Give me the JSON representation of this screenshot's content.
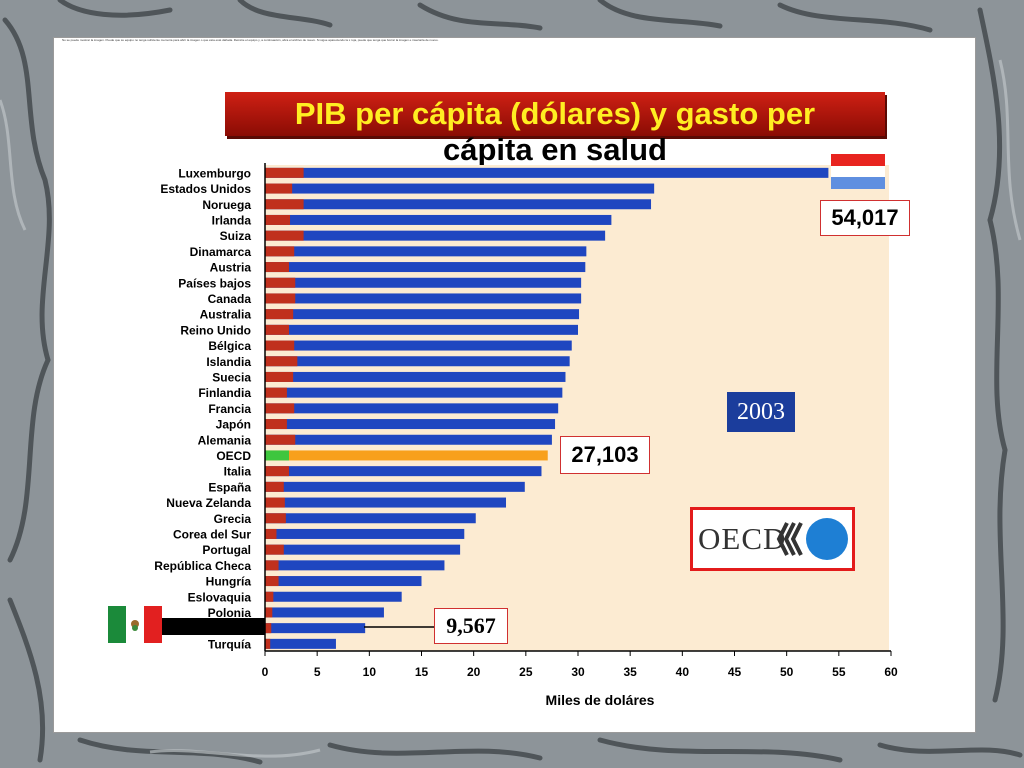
{
  "slide": {
    "note": "No se puede mostrar la imagen. Puede que su equipo no tenga suficiente memoria para abrir la imagen o que ésta esté dañada. Reinicie el equipo y, a continuación, abra el archivo de nuevo. Si sigue apareciendo la x roja, puede que tenga que borrar la imagen e insertarla de nuevo."
  },
  "chart_data": {
    "type": "bar",
    "orientation": "horizontal",
    "stacked": true,
    "title_line1": "PIB per cápita (dólares) y gasto per",
    "title_line2": "cápita en salud",
    "xlabel": "Miles de doláres",
    "ylabel": "",
    "xlim": [
      0,
      60
    ],
    "x_ticks": [
      "0",
      "5",
      "10",
      "15",
      "20",
      "25",
      "30",
      "35",
      "40",
      "45",
      "50",
      "55",
      "60"
    ],
    "categories": [
      "Luxemburgo",
      "Estados Unidos",
      "Noruega",
      "Irlanda",
      "Suiza",
      "Dinamarca",
      "Austria",
      "Países bajos",
      "Canada",
      "Australia",
      "Reino Unido",
      "Bélgica",
      "Islandia",
      "Suecia",
      "Finlandia",
      "Francia",
      "Japón",
      "Alemania",
      "OECD",
      "Italia",
      "España",
      "Nueva Zelanda",
      "Grecia",
      "Corea del Sur",
      "Portugal",
      "República Checa",
      "Hungría",
      "Eslovaquia",
      "Polonia",
      "México",
      "Turquía"
    ],
    "series": [
      {
        "values": [
          3.7,
          2.6,
          3.7,
          2.4,
          3.7,
          2.8,
          2.3,
          2.9,
          2.9,
          2.7,
          2.3,
          2.8,
          3.1,
          2.7,
          2.1,
          2.8,
          2.1,
          2.9,
          2.3,
          2.3,
          1.8,
          1.9,
          2.0,
          1.1,
          1.8,
          1.3,
          1.3,
          0.8,
          0.7,
          0.6,
          0.5
        ]
      },
      {
        "values": [
          54.0,
          37.3,
          37.0,
          33.2,
          32.6,
          30.8,
          30.7,
          30.3,
          30.3,
          30.1,
          30.0,
          29.4,
          29.2,
          28.8,
          28.5,
          28.1,
          27.8,
          27.5,
          27.1,
          26.5,
          24.9,
          23.1,
          20.2,
          19.1,
          18.7,
          17.2,
          15.0,
          13.1,
          11.4,
          9.6,
          6.8
        ]
      }
    ],
    "highlight_category": "OECD",
    "highlight_colors": {
      "gdp": "#f8a01c",
      "health": "#3ec63e"
    },
    "colors": {
      "gdp": "#1f46c0",
      "health": "#c0301d",
      "plot_bg": "#fcebd2"
    },
    "annotations": {
      "luxembourg": "54,017",
      "oecd": "27,103",
      "mexico": "9,567",
      "year": "2003"
    },
    "grid": false
  },
  "logo": {
    "text": "OECD"
  }
}
